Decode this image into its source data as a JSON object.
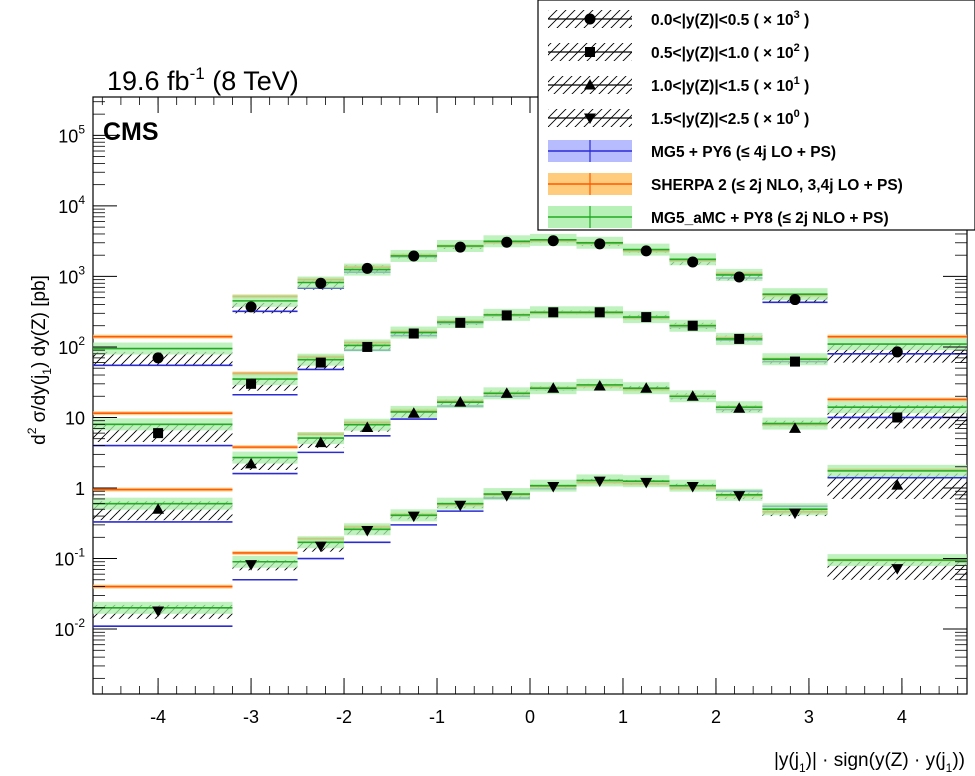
{
  "header": {
    "lumi_prefix": "19.6 fb",
    "lumi_exp": "-1",
    "lumi_suffix": " (8 TeV)",
    "experiment": "CMS"
  },
  "legend": {
    "entries": [
      {
        "label": "0.0<|y(Z)|<0.5 ( × 10",
        "exp": "3",
        "tail": ")",
        "marker": "circle",
        "kind": "data"
      },
      {
        "label": "0.5<|y(Z)|<1.0 ( × 10",
        "exp": "2",
        "tail": ")",
        "marker": "square",
        "kind": "data"
      },
      {
        "label": "1.0<|y(Z)|<1.5 ( × 10",
        "exp": "1",
        "tail": ")",
        "marker": "triangle-up",
        "kind": "data"
      },
      {
        "label": "1.5<|y(Z)|<2.5 ( × 10",
        "exp": "0",
        "tail": ")",
        "marker": "triangle-down",
        "kind": "data"
      },
      {
        "label": "MG5 + PY6 (≤ 4j LO + PS)",
        "exp": "",
        "tail": "",
        "color": "#2b2bd6",
        "band": "#aab0ff",
        "kind": "mc"
      },
      {
        "label": "SHERPA 2 (≤ 2j NLO, 3,4j LO + PS)",
        "exp": "",
        "tail": "",
        "color": "#ff5a00",
        "band": "#ffc266",
        "kind": "mc"
      },
      {
        "label": "MG5_aMC + PY8 (≤ 2j NLO + PS)",
        "exp": "",
        "tail": "",
        "color": "#22aa22",
        "band": "#aaeeaa",
        "kind": "mc"
      }
    ]
  },
  "chart_data": {
    "type": "scatter",
    "title": "",
    "ylabel_parts": [
      "d",
      "2",
      " σ/dy(j",
      "1",
      ") dy(Z) [pb]"
    ],
    "xlabel_parts": [
      "|y(j",
      "1",
      ")| · sign(y(Z) · y(j",
      "1",
      "))"
    ],
    "xlim": [
      -4.7,
      4.7
    ],
    "ylim": [
      0.0012,
      350000
    ],
    "yscale": "log",
    "xticks": [
      -4,
      -3,
      -2,
      -1,
      0,
      1,
      2,
      3,
      4
    ],
    "xtick_labels": [
      "-4",
      "-3",
      "-2",
      "-1",
      "0",
      "1",
      "2",
      "3",
      "4"
    ],
    "yticks": [
      {
        "value": 0.01,
        "base": "10",
        "exp": "-2"
      },
      {
        "value": 0.1,
        "base": "10",
        "exp": "-1"
      },
      {
        "value": 1,
        "base": "1",
        "exp": ""
      },
      {
        "value": 10,
        "base": "10",
        "exp": ""
      },
      {
        "value": 100,
        "base": "10",
        "exp": "2"
      },
      {
        "value": 1000,
        "base": "10",
        "exp": "3"
      },
      {
        "value": 10000,
        "base": "10",
        "exp": "4"
      },
      {
        "value": 100000,
        "base": "10",
        "exp": "5"
      }
    ],
    "bin_edges": [
      -4.7,
      -3.2,
      -2.8,
      -2.5,
      -2.0,
      -1.5,
      -1.0,
      -0.5,
      0.0,
      0.5,
      1.0,
      1.5,
      2.0,
      2.5,
      2.8,
      3.2,
      4.7
    ],
    "bin_edges_lowest_series": [
      -4.7,
      -3.2,
      -2.8,
      -2.5,
      -2.0,
      -1.5,
      -1.0,
      -0.5,
      0.0,
      0.5,
      1.0,
      1.5,
      2.0,
      2.5,
      2.8,
      3.2,
      4.7
    ],
    "series": [
      {
        "name": "0.0<|y(Z)|<0.5 ( × 10³ )",
        "marker": "circle",
        "x": [
          -4.0,
          -3.0,
          -2.25,
          -1.75,
          -1.25,
          -0.75,
          -0.25,
          0.25,
          0.75,
          1.25,
          1.75,
          2.25,
          2.85,
          3.95
        ],
        "edges": [
          [
            -4.7,
            -3.2
          ],
          [
            -3.2,
            -2.5
          ],
          [
            -2.5,
            -2.0
          ],
          [
            -2.0,
            -1.5
          ],
          [
            -1.5,
            -1.0
          ],
          [
            -1.0,
            -0.5
          ],
          [
            -0.5,
            0.0
          ],
          [
            0.0,
            0.5
          ],
          [
            0.5,
            1.0
          ],
          [
            1.0,
            1.5
          ],
          [
            1.5,
            2.0
          ],
          [
            2.0,
            2.5
          ],
          [
            2.5,
            3.2
          ],
          [
            3.2,
            4.7
          ]
        ],
        "data": [
          70,
          370,
          800,
          1300,
          1950,
          2600,
          3050,
          3200,
          2900,
          2300,
          1600,
          980,
          470,
          85
        ],
        "hatch_lo": [
          55,
          300,
          650,
          1100,
          1800,
          2450,
          2850,
          3000,
          2700,
          2150,
          1450,
          880,
          420,
          60
        ],
        "hatch_hi": [
          85,
          420,
          900,
          1450,
          2100,
          2750,
          3250,
          3400,
          3100,
          2450,
          1750,
          1100,
          560,
          110
        ],
        "mg5py6": [
          55,
          320,
          680,
          1150,
          1900,
          2650,
          3000,
          3150,
          2900,
          2300,
          1650,
          950,
          430,
          80
        ],
        "sherpa": [
          140,
          520,
          900,
          1350,
          2000,
          2700,
          3050,
          3200,
          2950,
          2300,
          1700,
          1100,
          540,
          140
        ],
        "amc": [
          95,
          450,
          820,
          1250,
          1950,
          2700,
          3150,
          3300,
          3000,
          2400,
          1750,
          1050,
          560,
          110
        ]
      },
      {
        "name": "0.5<|y(Z)|<1.0 ( × 10² )",
        "marker": "square",
        "x": [
          -4.0,
          -3.0,
          -2.25,
          -1.75,
          -1.25,
          -0.75,
          -0.25,
          0.25,
          0.75,
          1.25,
          1.75,
          2.25,
          2.85,
          3.95
        ],
        "edges": [
          [
            -4.7,
            -3.2
          ],
          [
            -3.2,
            -2.5
          ],
          [
            -2.5,
            -2.0
          ],
          [
            -2.0,
            -1.5
          ],
          [
            -1.5,
            -1.0
          ],
          [
            -1.0,
            -0.5
          ],
          [
            -0.5,
            0.0
          ],
          [
            0.0,
            0.5
          ],
          [
            0.5,
            1.0
          ],
          [
            1.0,
            1.5
          ],
          [
            1.5,
            2.0
          ],
          [
            2.0,
            2.5
          ],
          [
            2.5,
            3.2
          ],
          [
            3.2,
            4.7
          ]
        ],
        "data": [
          6,
          30,
          60,
          100,
          155,
          220,
          280,
          310,
          310,
          265,
          200,
          130,
          62,
          10
        ],
        "hatch_lo": [
          4.5,
          24,
          48,
          88,
          140,
          205,
          260,
          290,
          290,
          245,
          180,
          120,
          58,
          7
        ],
        "hatch_hi": [
          8,
          36,
          70,
          115,
          170,
          240,
          300,
          330,
          330,
          285,
          220,
          145,
          70,
          15
        ],
        "mg5py6": [
          4,
          21,
          48,
          90,
          145,
          215,
          275,
          300,
          300,
          255,
          190,
          125,
          62,
          10
        ],
        "sherpa": [
          11.5,
          42,
          72,
          115,
          165,
          230,
          285,
          305,
          305,
          260,
          200,
          135,
          68,
          18
        ],
        "amc": [
          8,
          35,
          66,
          105,
          160,
          225,
          285,
          310,
          310,
          265,
          200,
          130,
          67,
          14
        ]
      },
      {
        "name": "1.0<|y(Z)|<1.5 ( × 10¹ )",
        "marker": "triangle-up",
        "x": [
          -4.0,
          -3.0,
          -2.25,
          -1.75,
          -1.25,
          -0.75,
          -0.25,
          0.25,
          0.75,
          1.25,
          1.75,
          2.25,
          2.85,
          3.95
        ],
        "edges": [
          [
            -4.7,
            -3.2
          ],
          [
            -3.2,
            -2.5
          ],
          [
            -2.5,
            -2.0
          ],
          [
            -2.0,
            -1.5
          ],
          [
            -1.5,
            -1.0
          ],
          [
            -1.0,
            -0.5
          ],
          [
            -0.5,
            0.0
          ],
          [
            0.0,
            0.5
          ],
          [
            0.5,
            1.0
          ],
          [
            1.0,
            1.5
          ],
          [
            1.5,
            2.0
          ],
          [
            2.0,
            2.5
          ],
          [
            2.5,
            3.2
          ],
          [
            3.2,
            4.7
          ]
        ],
        "data": [
          0.5,
          2.2,
          4.4,
          7.2,
          11.5,
          16.5,
          22,
          26,
          28,
          26,
          20,
          13.5,
          7,
          1.1
        ],
        "hatch_lo": [
          0.35,
          1.8,
          3.7,
          6.3,
          10,
          15,
          20,
          24,
          26,
          24,
          18,
          12,
          7.5,
          0.7
        ],
        "hatch_hi": [
          0.65,
          2.6,
          5.0,
          8.2,
          13,
          18,
          24,
          28,
          30,
          28,
          22,
          15,
          9,
          1.6
        ],
        "mg5py6": [
          0.33,
          1.6,
          3.2,
          5.5,
          9.5,
          14.5,
          20,
          25,
          28,
          25,
          19,
          13,
          7.8,
          1.4
        ],
        "sherpa": [
          0.95,
          3.8,
          5.8,
          8.5,
          12.5,
          17,
          22,
          26,
          28,
          25,
          20,
          14,
          8,
          1.8
        ],
        "amc": [
          0.6,
          2.7,
          5.1,
          7.9,
          12,
          16.5,
          22,
          26,
          29,
          26,
          20,
          14,
          8.2,
          1.75
        ]
      },
      {
        "name": "1.5<|y(Z)|<2.5 ( × 10⁰ )",
        "marker": "triangle-down",
        "x": [
          -4.0,
          -3.0,
          -2.25,
          -1.75,
          -1.25,
          -0.75,
          -0.25,
          0.25,
          0.75,
          1.25,
          1.75,
          2.25,
          2.85,
          3.95
        ],
        "edges": [
          [
            -4.7,
            -3.2
          ],
          [
            -3.2,
            -2.5
          ],
          [
            -2.5,
            -2.0
          ],
          [
            -2.0,
            -1.5
          ],
          [
            -1.5,
            -1.0
          ],
          [
            -1.0,
            -0.5
          ],
          [
            -0.5,
            0.0
          ],
          [
            0.0,
            0.5
          ],
          [
            0.5,
            1.0
          ],
          [
            1.0,
            1.5
          ],
          [
            1.5,
            2.0
          ],
          [
            2.0,
            2.5
          ],
          [
            2.5,
            3.2
          ],
          [
            3.2,
            4.7
          ]
        ],
        "data": [
          0.018,
          0.082,
          0.15,
          0.25,
          0.4,
          0.57,
          0.78,
          1.05,
          1.25,
          1.2,
          1.05,
          0.78,
          0.44,
          0.072
        ],
        "hatch_lo": [
          0.014,
          0.068,
          0.125,
          0.22,
          0.36,
          0.52,
          0.72,
          0.98,
          1.15,
          1.1,
          0.95,
          0.7,
          0.4,
          0.05
        ],
        "hatch_hi": [
          0.022,
          0.095,
          0.175,
          0.28,
          0.44,
          0.62,
          0.85,
          1.12,
          1.35,
          1.3,
          1.15,
          0.86,
          0.5,
          0.095
        ],
        "mg5py6": [
          0.011,
          0.05,
          0.1,
          0.17,
          0.3,
          0.47,
          0.72,
          0.98,
          1.2,
          1.2,
          1.05,
          0.9,
          0.55,
          0.095
        ],
        "sherpa": [
          0.04,
          0.12,
          0.19,
          0.28,
          0.42,
          0.58,
          0.8,
          1.05,
          1.2,
          1.15,
          1.0,
          0.78,
          0.46,
          0.095
        ],
        "amc": [
          0.02,
          0.09,
          0.17,
          0.26,
          0.41,
          0.6,
          0.82,
          1.08,
          1.28,
          1.25,
          1.08,
          0.8,
          0.5,
          0.095
        ]
      }
    ]
  }
}
